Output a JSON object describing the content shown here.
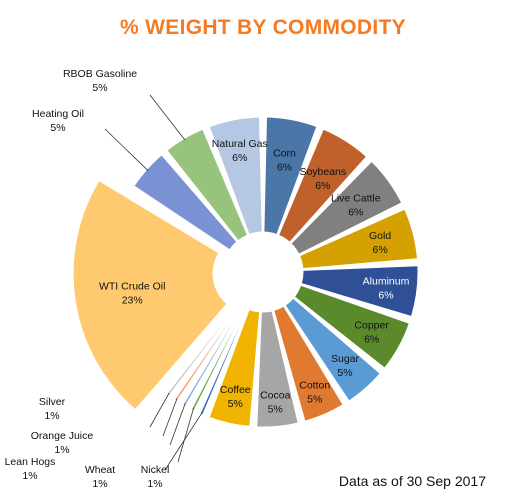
{
  "chart_data": {
    "type": "pie",
    "title": "% WEIGHT BY COMMODITY",
    "note": "Data as of 30 Sep 2017",
    "unit": "%",
    "slices": [
      {
        "label": "Corn",
        "value": 6,
        "display": "6%",
        "color": "#4a76a8"
      },
      {
        "label": "Soybeans",
        "value": 6,
        "display": "6%",
        "color": "#c0602a"
      },
      {
        "label": "Live Cattle",
        "value": 6,
        "display": "6%",
        "color": "#808080"
      },
      {
        "label": "Gold",
        "value": 6,
        "display": "6%",
        "color": "#d4a100"
      },
      {
        "label": "Aluminum",
        "value": 6,
        "display": "6%",
        "color": "#2f4f96"
      },
      {
        "label": "Copper",
        "value": 6,
        "display": "6%",
        "color": "#5a8a2c"
      },
      {
        "label": "Sugar",
        "value": 5,
        "display": "5%",
        "color": "#5b9bd5"
      },
      {
        "label": "Cotton",
        "value": 5,
        "display": "5%",
        "color": "#e07a30"
      },
      {
        "label": "Cocoa",
        "value": 5,
        "display": "5%",
        "color": "#a6a6a6"
      },
      {
        "label": "Coffee",
        "value": 5,
        "display": "5%",
        "color": "#f0b400"
      },
      {
        "label": "Nickel",
        "value": 1,
        "display": "1%",
        "color": "#3b64b4"
      },
      {
        "label": "Wheat",
        "value": 1,
        "display": "1%",
        "color": "#6fa850"
      },
      {
        "label": "Lean Hogs",
        "value": 1,
        "display": "1%",
        "color": "#7fb0de"
      },
      {
        "label": "Orange Juice",
        "value": 1,
        "display": "1%",
        "color": "#f0a070"
      },
      {
        "label": "Silver",
        "value": 1,
        "display": "1%",
        "color": "#c8c8c8"
      },
      {
        "label": "WTI Crude Oil",
        "value": 23,
        "display": "23%",
        "color": "#ffc970"
      },
      {
        "label": "Heating Oil",
        "value": 5,
        "display": "5%",
        "color": "#7b93d4"
      },
      {
        "label": "RBOB Gasoline",
        "value": 5,
        "display": "5%",
        "color": "#98c37c"
      },
      {
        "label": "Natural Gas",
        "value": 6,
        "display": "6%",
        "color": "#b4c8e4"
      }
    ],
    "colors": {
      "title": "#f47b20"
    }
  }
}
